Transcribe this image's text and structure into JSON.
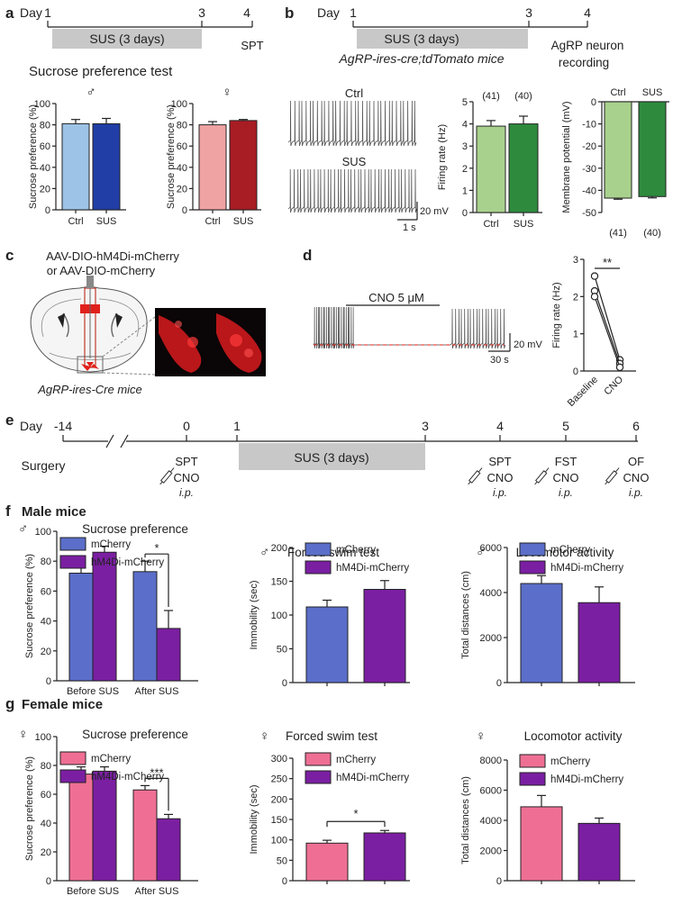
{
  "panels": {
    "a": {
      "letter": "a",
      "day_label": "Day",
      "day_ticks": [
        "1",
        "3",
        "4"
      ],
      "sus_box": "SUS (3 days)",
      "spt": "SPT",
      "title": "Sucrose preference test"
    },
    "b": {
      "letter": "b",
      "day_label": "Day",
      "day_ticks": [
        "1",
        "3",
        "4"
      ],
      "sus_box": "SUS (3 days)",
      "mouse_line": "AgRP-ires-cre;tdTomato mice",
      "recording_line1": "AgRP neuron",
      "recording_line2": "recording",
      "trace_ctrl": "Ctrl",
      "trace_sus": "SUS",
      "scale_mv": "20 mV",
      "scale_s": "1 s"
    },
    "c": {
      "letter": "c",
      "virus_line1": "AAV-DIO-hM4Di-mCherry",
      "virus_line2": "or AAV-DIO-mCherry",
      "mouse_line": "AgRP-ires-Cre mice",
      "virus_color": "#e0201b"
    },
    "d": {
      "letter": "d",
      "drug": "CNO 5 μM",
      "scale_mv": "20 mV",
      "scale_s": "30 s"
    },
    "e": {
      "letter": "e",
      "day_label": "Day",
      "day_ticks": [
        "-14",
        "0",
        "1",
        "3",
        "4",
        "5",
        "6"
      ],
      "surgery": "Surgery",
      "sus_box": "SUS (3 days)",
      "events": [
        {
          "test": "SPT",
          "drug": "CNO",
          "route": ""
        },
        {
          "test": "SPT",
          "drug": "CNO",
          "route": "i.p."
        },
        {
          "test": "FST",
          "drug": "CNO",
          "route": "i.p."
        },
        {
          "test": "OF",
          "drug": "CNO",
          "route": "i.p."
        }
      ],
      "route_day0": "i.p."
    },
    "f": {
      "letter": "f",
      "heading": "Male mice",
      "sex_symbol": "♂"
    },
    "g": {
      "letter": "g",
      "heading": "Female mice",
      "sex_symbol": "♀"
    }
  },
  "colors": {
    "ctrl_male": "#9dc3e6",
    "sus_male": "#203ea6",
    "ctrl_female": "#f0a3a3",
    "sus_female": "#a81c24",
    "ctrl_green": "#a9d18e",
    "sus_green": "#2e8b3e",
    "mcherry_male": "#5b6ec9",
    "hm4di": "#7b1fa2",
    "mcherry_female": "#ef6f94"
  },
  "chart_data": [
    {
      "id": "a_male",
      "type": "bar",
      "symbol": "♂",
      "categories": [
        "Ctrl",
        "SUS"
      ],
      "values": [
        81,
        81
      ],
      "errors": [
        4,
        5
      ],
      "ylabel": "Sucrose preference (%)",
      "ylim": [
        0,
        100
      ],
      "yticks": [
        0,
        20,
        40,
        60,
        80,
        100
      ]
    },
    {
      "id": "a_female",
      "type": "bar",
      "symbol": "♀",
      "categories": [
        "Ctrl",
        "SUS"
      ],
      "values": [
        80,
        84
      ],
      "errors": [
        3,
        1
      ],
      "ylabel": "Sucrose preference (%)",
      "ylim": [
        0,
        100
      ],
      "yticks": [
        0,
        20,
        40,
        60,
        80,
        100
      ]
    },
    {
      "id": "b_fr",
      "type": "bar",
      "categories": [
        "Ctrl",
        "SUS"
      ],
      "values": [
        3.9,
        4.0
      ],
      "errors": [
        0.25,
        0.35
      ],
      "labels": [
        "(41)",
        "(40)"
      ],
      "ylabel": "Firing rate (Hz)",
      "ylim": [
        0,
        5
      ],
      "yticks": [
        0,
        1,
        2,
        3,
        4,
        5
      ]
    },
    {
      "id": "b_mp",
      "type": "bar",
      "categories": [
        "Ctrl",
        "SUS"
      ],
      "values": [
        -43.5,
        -42.8
      ],
      "errors": [
        0.5,
        0.6
      ],
      "labels": [
        "(41)",
        "(40)"
      ],
      "ylabel": "Membrane potential (mV)",
      "ylim": [
        -50,
        0
      ],
      "yticks": [
        0,
        -10,
        -20,
        -30,
        -40,
        -50
      ]
    },
    {
      "id": "d_fr",
      "type": "scatter",
      "categories": [
        "Baseline",
        "CNO"
      ],
      "series": [
        {
          "values": [
            2.55,
            0.3
          ]
        },
        {
          "values": [
            2.15,
            0.2
          ]
        },
        {
          "values": [
            2.0,
            0.1
          ]
        }
      ],
      "ylabel": "Firing rate (Hz)",
      "ylim": [
        0,
        3
      ],
      "yticks": [
        0,
        1,
        2,
        3
      ],
      "annotation": "**"
    },
    {
      "id": "f_sp",
      "type": "bar",
      "symbol": "♂",
      "title": "Sucrose preference",
      "categories": [
        "Before SUS",
        "After SUS"
      ],
      "series": [
        {
          "name": "mCherry",
          "values": [
            72,
            73
          ],
          "errors": [
            10,
            7
          ]
        },
        {
          "name": "hM4Di-mCherry",
          "values": [
            86,
            35
          ],
          "errors": [
            4,
            12
          ]
        }
      ],
      "ylabel": "Sucrose preference (%)",
      "ylim": [
        0,
        100
      ],
      "yticks": [
        0,
        20,
        40,
        60,
        80,
        100
      ],
      "annotation": "*"
    },
    {
      "id": "f_fst",
      "type": "bar",
      "symbol": "♂",
      "title": "Forced swim test",
      "series": [
        {
          "name": "mCherry",
          "values": [
            112
          ],
          "errors": [
            10
          ]
        },
        {
          "name": "hM4Di-mCherry",
          "values": [
            138
          ],
          "errors": [
            13
          ]
        }
      ],
      "ylabel": "Immobility (sec)",
      "ylim": [
        0,
        200
      ],
      "yticks": [
        0,
        50,
        100,
        150,
        200
      ]
    },
    {
      "id": "f_loc",
      "type": "bar",
      "symbol": "♂",
      "title": "Locomotor activity",
      "series": [
        {
          "name": "mCherry",
          "values": [
            4400
          ],
          "errors": [
            350
          ]
        },
        {
          "name": "hM4Di-mCherry",
          "values": [
            3550
          ],
          "errors": [
            700
          ]
        }
      ],
      "ylabel": "Total distances (cm)",
      "ylim": [
        0,
        6000
      ],
      "yticks": [
        0,
        2000,
        4000,
        6000
      ]
    },
    {
      "id": "g_sp",
      "type": "bar",
      "symbol": "♀",
      "title": "Sucrose preference",
      "categories": [
        "Before SUS",
        "After SUS"
      ],
      "series": [
        {
          "name": "mCherry",
          "values": [
            74,
            63
          ],
          "errors": [
            5,
            3
          ]
        },
        {
          "name": "hM4Di-mCherry",
          "values": [
            76,
            43
          ],
          "errors": [
            3,
            3
          ]
        }
      ],
      "ylabel": "Sucrose preference (%)",
      "ylim": [
        0,
        100
      ],
      "yticks": [
        0,
        20,
        40,
        60,
        80,
        100
      ],
      "annotation": "***"
    },
    {
      "id": "g_fst",
      "type": "bar",
      "symbol": "♀",
      "title": "Forced swim test",
      "series": [
        {
          "name": "mCherry",
          "values": [
            92
          ],
          "errors": [
            7
          ]
        },
        {
          "name": "hM4Di-mCherry",
          "values": [
            117
          ],
          "errors": [
            6
          ]
        }
      ],
      "ylabel": "Immobility (sec)",
      "ylim": [
        0,
        300
      ],
      "yticks": [
        0,
        50,
        100,
        150,
        200,
        250,
        300
      ],
      "annotation": "*"
    },
    {
      "id": "g_loc",
      "type": "bar",
      "symbol": "♀",
      "title": "Locomotor activity",
      "series": [
        {
          "name": "mCherry",
          "values": [
            4900
          ],
          "errors": [
            750
          ]
        },
        {
          "name": "hM4Di-mCherry",
          "values": [
            3800
          ],
          "errors": [
            350
          ]
        }
      ],
      "ylabel": "Total distances (cm)",
      "ylim": [
        0,
        8000
      ],
      "yticks": [
        0,
        2000,
        4000,
        6000,
        8000
      ]
    }
  ]
}
